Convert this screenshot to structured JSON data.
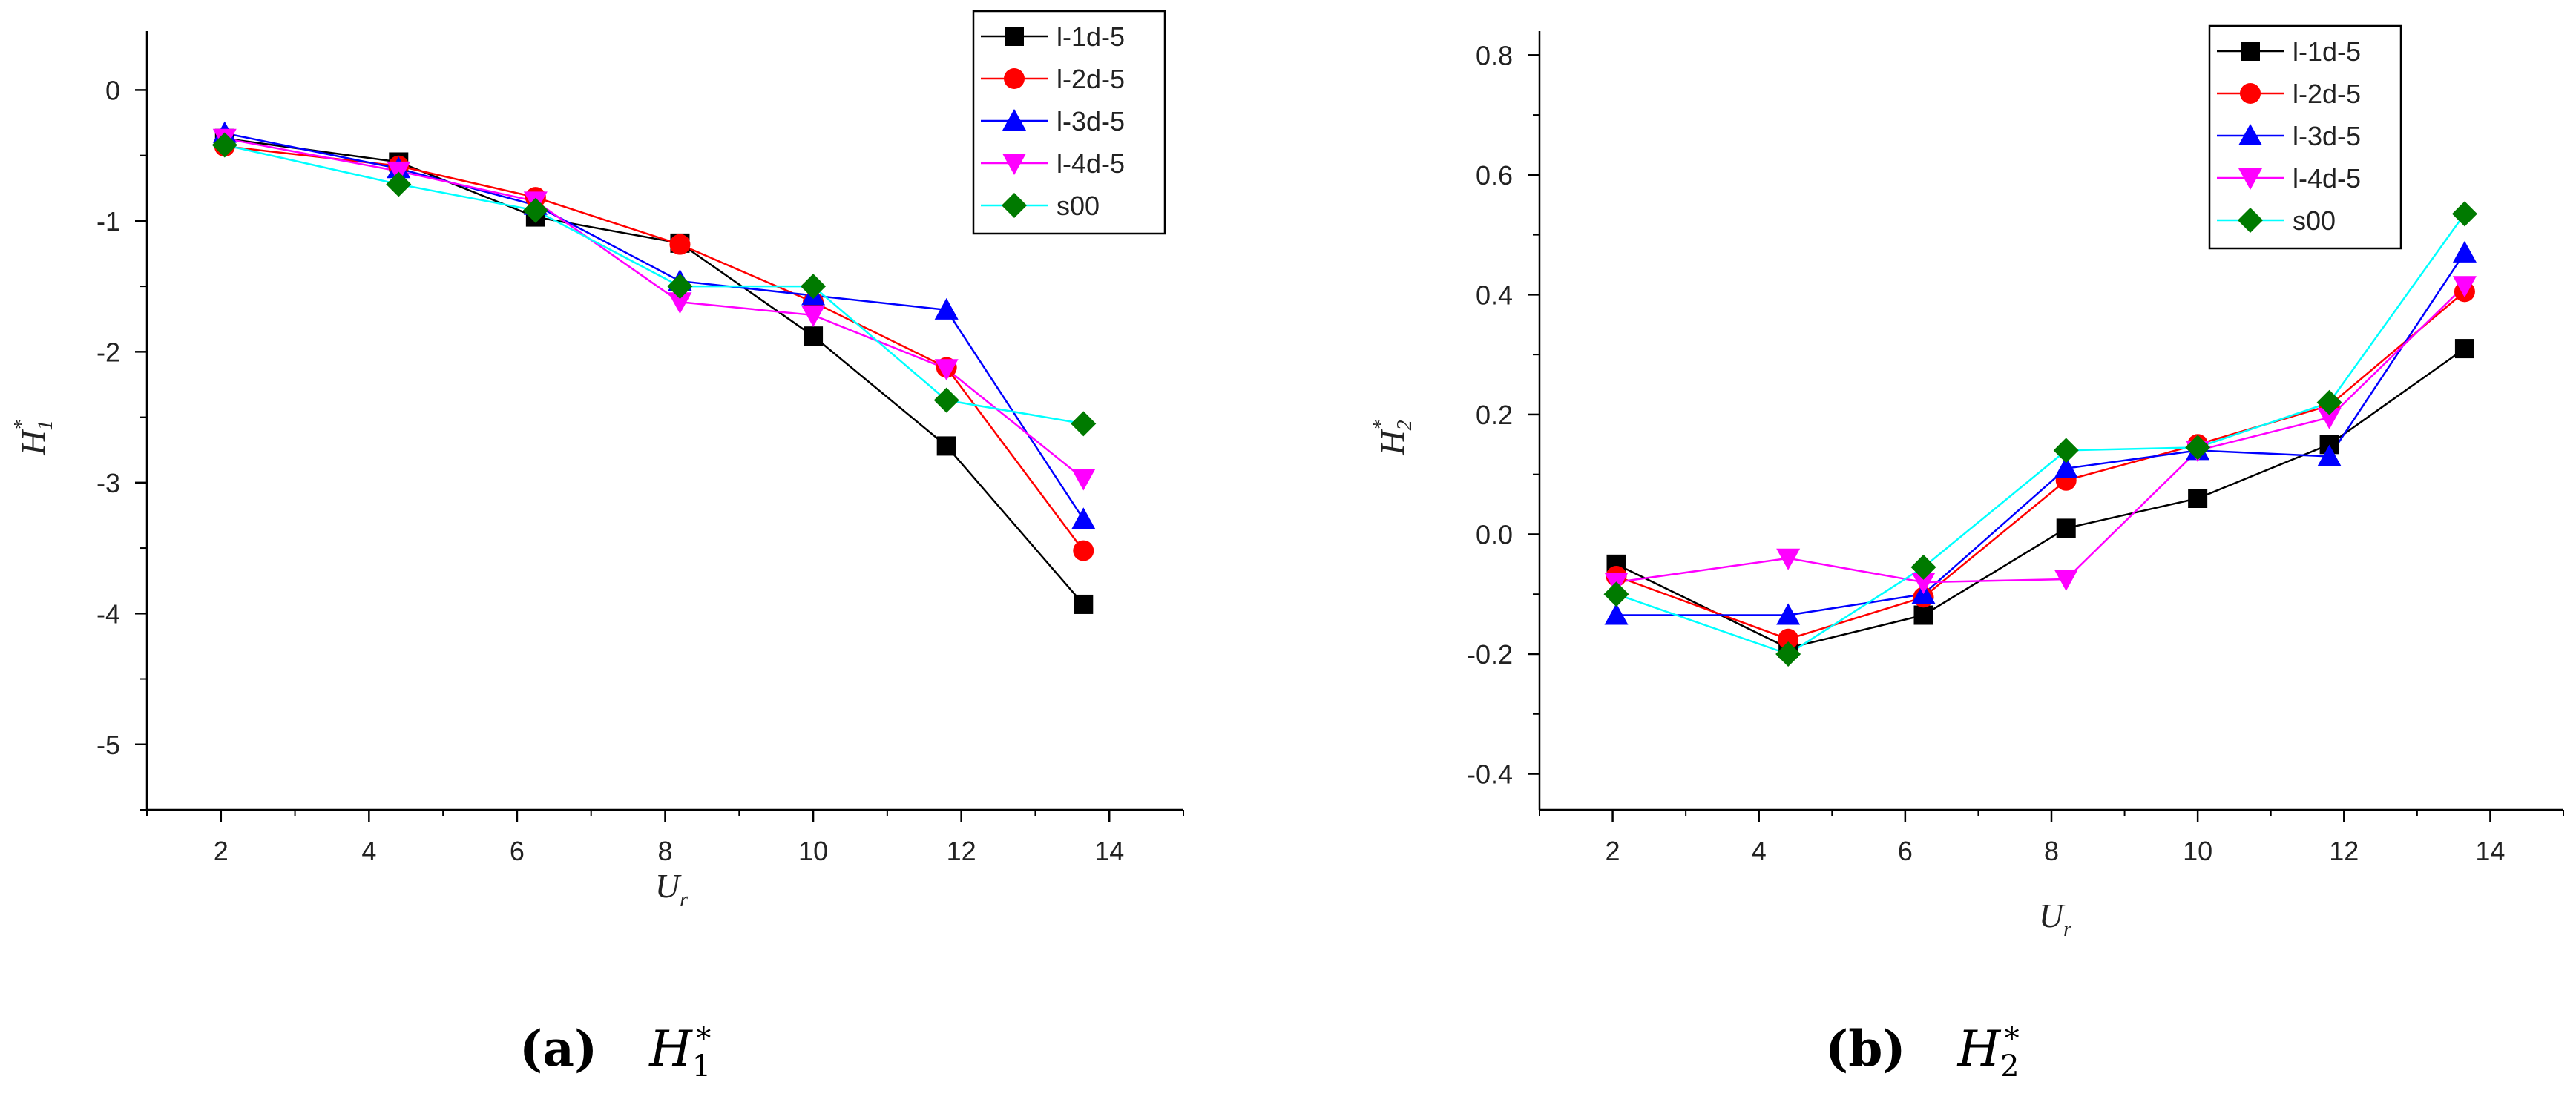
{
  "chart_data": [
    {
      "type": "line",
      "ylabel_main": "H",
      "ylabel_sup": "*",
      "ylabel_sub": "1",
      "xlabel_main": "U",
      "xlabel_sub": "r",
      "xlim": [
        1,
        15
      ],
      "ylim": [
        -5.5,
        0.45
      ],
      "xticks": [
        2,
        4,
        6,
        8,
        10,
        12,
        14
      ],
      "yticks": [
        0,
        -1,
        -2,
        -3,
        -4,
        -5
      ],
      "ytick_labels": [
        "0",
        "-1",
        "-2",
        "-3",
        "-4",
        "-5"
      ],
      "legend_position": "top-right",
      "x": [
        2.05,
        4.4,
        6.25,
        8.2,
        10.0,
        11.8,
        13.65
      ],
      "series": [
        {
          "name": "l-1d-5",
          "color": "#000000",
          "marker": "square",
          "values": [
            -0.37,
            -0.55,
            -0.97,
            -1.17,
            -1.88,
            -2.72,
            -3.93
          ]
        },
        {
          "name": "l-2d-5",
          "color": "#ff0000",
          "marker": "circle",
          "values": [
            -0.43,
            -0.58,
            -0.82,
            -1.18,
            -1.62,
            -2.12,
            -3.52
          ]
        },
        {
          "name": "l-3d-5",
          "color": "#0000ff",
          "marker": "triangle-up",
          "values": [
            -0.33,
            -0.6,
            -0.88,
            -1.46,
            -1.57,
            -1.68,
            -3.28
          ]
        },
        {
          "name": "l-4d-5",
          "color": "#ff00ff",
          "marker": "triangle-down",
          "values": [
            -0.37,
            -0.62,
            -0.85,
            -1.62,
            -1.72,
            -2.13,
            -2.97
          ]
        },
        {
          "name": "s00",
          "color": "#009999",
          "line_color": "#00ffff",
          "marker_color": "#007a00",
          "marker": "diamond",
          "values": [
            -0.42,
            -0.72,
            -0.92,
            -1.5,
            -1.5,
            -2.37,
            -2.55
          ]
        }
      ]
    },
    {
      "type": "line",
      "ylabel_main": "H",
      "ylabel_sup": "*",
      "ylabel_sub": "2",
      "xlabel_main": "U",
      "xlabel_sub": "r",
      "xlim": [
        1,
        15
      ],
      "ylim": [
        -0.46,
        0.84
      ],
      "xticks": [
        2,
        4,
        6,
        8,
        10,
        12,
        14
      ],
      "yticks": [
        0.8,
        0.6,
        0.4,
        0.2,
        0.0,
        -0.2,
        -0.4
      ],
      "ytick_labels": [
        "0.8",
        "0.6",
        "0.4",
        "0.2",
        "0.0",
        "-0.2",
        "-0.4"
      ],
      "legend_position": "top-right",
      "x": [
        2.05,
        4.4,
        6.25,
        8.2,
        10.0,
        11.8,
        13.65
      ],
      "series": [
        {
          "name": "l-1d-5",
          "color": "#000000",
          "marker": "square",
          "values": [
            -0.05,
            -0.19,
            -0.135,
            0.01,
            0.06,
            0.15,
            0.31
          ]
        },
        {
          "name": "l-2d-5",
          "color": "#ff0000",
          "marker": "circle",
          "values": [
            -0.07,
            -0.175,
            -0.105,
            0.09,
            0.15,
            0.215,
            0.405
          ]
        },
        {
          "name": "l-3d-5",
          "color": "#0000ff",
          "marker": "triangle-up",
          "values": [
            -0.135,
            -0.135,
            -0.1,
            0.11,
            0.14,
            0.13,
            0.47
          ]
        },
        {
          "name": "l-4d-5",
          "color": "#ff00ff",
          "marker": "triangle-down",
          "values": [
            -0.08,
            -0.04,
            -0.08,
            -0.075,
            0.14,
            0.195,
            0.415
          ]
        },
        {
          "name": "s00",
          "color": "#009999",
          "line_color": "#00ffff",
          "marker_color": "#007a00",
          "marker": "diamond",
          "values": [
            -0.1,
            -0.2,
            -0.055,
            0.14,
            0.145,
            0.22,
            0.535
          ]
        }
      ]
    }
  ],
  "captions": {
    "a": {
      "label": "(a)",
      "main": "H",
      "sub": "1",
      "sup": "*"
    },
    "b": {
      "label": "(b)",
      "main": "H",
      "sub": "2",
      "sup": "*"
    }
  }
}
